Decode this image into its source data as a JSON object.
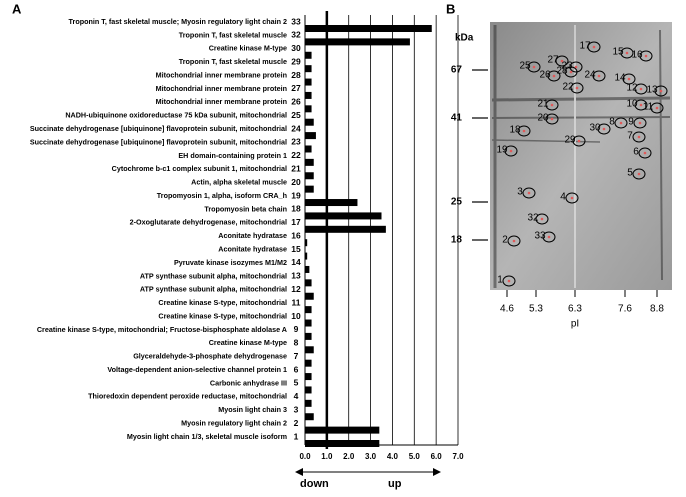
{
  "panel_labels": {
    "a": "A",
    "b": "B"
  },
  "chart_data": {
    "type": "bar",
    "orientation": "horizontal",
    "categories": [
      "Troponin T, fast skeletal muscle; Myosin regulatory light chain 2",
      "Troponin T, fast skeletal muscle",
      "Creatine kinase M-type",
      "Troponin T, fast skeletal muscle",
      "Mitochondrial inner membrane protein",
      "Mitochondrial inner membrane protein",
      "Mitochondrial inner membrane protein",
      "NADH-ubiquinone oxidoreductase 75 kDa subunit, mitochondrial",
      "Succinate dehydrogenase [ubiquinone] flavoprotein subunit, mitochondrial",
      "Succinate dehydrogenase [ubiquinone] flavoprotein subunit, mitochondrial",
      "EH domain-containing protein 1",
      "Cytochrome b-c1 complex subunit 1, mitochondrial",
      "Actin, alpha skeletal muscle",
      "Tropomyosin 1, alpha, isoform CRA_h",
      "Tropomyosin beta chain",
      "2-Oxoglutarate dehydrogenase, mitochondrial",
      "Aconitate hydratase",
      "Aconitate hydratase",
      "Pyruvate kinase isozymes M1/M2",
      "ATP synthase subunit alpha, mitochondrial",
      "ATP synthase subunit alpha, mitochondrial",
      "Creatine kinase S-type, mitochondrial",
      "Creatine kinase S-type, mitochondrial",
      "Creatine kinase S-type, mitochondrial; Fructose-bisphosphate aldolase A",
      "Creatine kinase M-type",
      "Glyceraldehyde-3-phosphate dehydrogenase",
      "Voltage-dependent anion-selective channel protein 1",
      "Carbonic anhydrase III",
      "Thioredoxin dependent peroxide reductase, mitochondrial",
      "Myosin light chain 3",
      "Myosin regulatory light chain 2",
      "Myosin light chain 1/3, skeletal muscle isoform"
    ],
    "spot_numbers": [
      33,
      32,
      30,
      29,
      28,
      27,
      26,
      25,
      24,
      23,
      22,
      21,
      20,
      19,
      18,
      17,
      16,
      15,
      14,
      13,
      12,
      11,
      10,
      9,
      8,
      7,
      6,
      5,
      4,
      3,
      2,
      1
    ],
    "values": [
      5.8,
      4.8,
      0.3,
      0.3,
      0.3,
      0.3,
      0.3,
      0.4,
      0.5,
      0.3,
      0.4,
      0.4,
      0.4,
      2.4,
      3.5,
      3.7,
      0.1,
      0.1,
      0.2,
      0.3,
      0.4,
      0.3,
      0.3,
      0.3,
      0.4,
      0.3,
      0.3,
      0.3,
      0.3,
      0.4,
      3.4,
      3.4
    ],
    "color": "#000000",
    "xlim": [
      0,
      7
    ],
    "xticks": [
      {
        "value": 0,
        "label": "0.0"
      },
      {
        "value": 1,
        "label": "1.0"
      },
      {
        "value": 2,
        "label": "2.0"
      },
      {
        "value": 3,
        "label": "3.0"
      },
      {
        "value": 4,
        "label": "4.0"
      },
      {
        "value": 5,
        "label": "5.0"
      },
      {
        "value": 6,
        "label": "6.0"
      },
      {
        "value": 7,
        "label": "7.0"
      }
    ],
    "reference_line": 1,
    "grid": true,
    "annotations": {
      "down": "down",
      "up": "up"
    }
  },
  "gel": {
    "y_unit": "kDa",
    "x_label": "pI",
    "mw_marks": [
      67,
      41,
      25,
      18
    ],
    "pi_marks": [
      4.6,
      5.3,
      6.3,
      7.6,
      8.8
    ],
    "spots": [
      1,
      2,
      3,
      4,
      5,
      6,
      7,
      8,
      9,
      10,
      11,
      12,
      13,
      14,
      15,
      16,
      17,
      18,
      19,
      20,
      21,
      22,
      23,
      24,
      25,
      26,
      27,
      28,
      29,
      30,
      32,
      33
    ]
  }
}
